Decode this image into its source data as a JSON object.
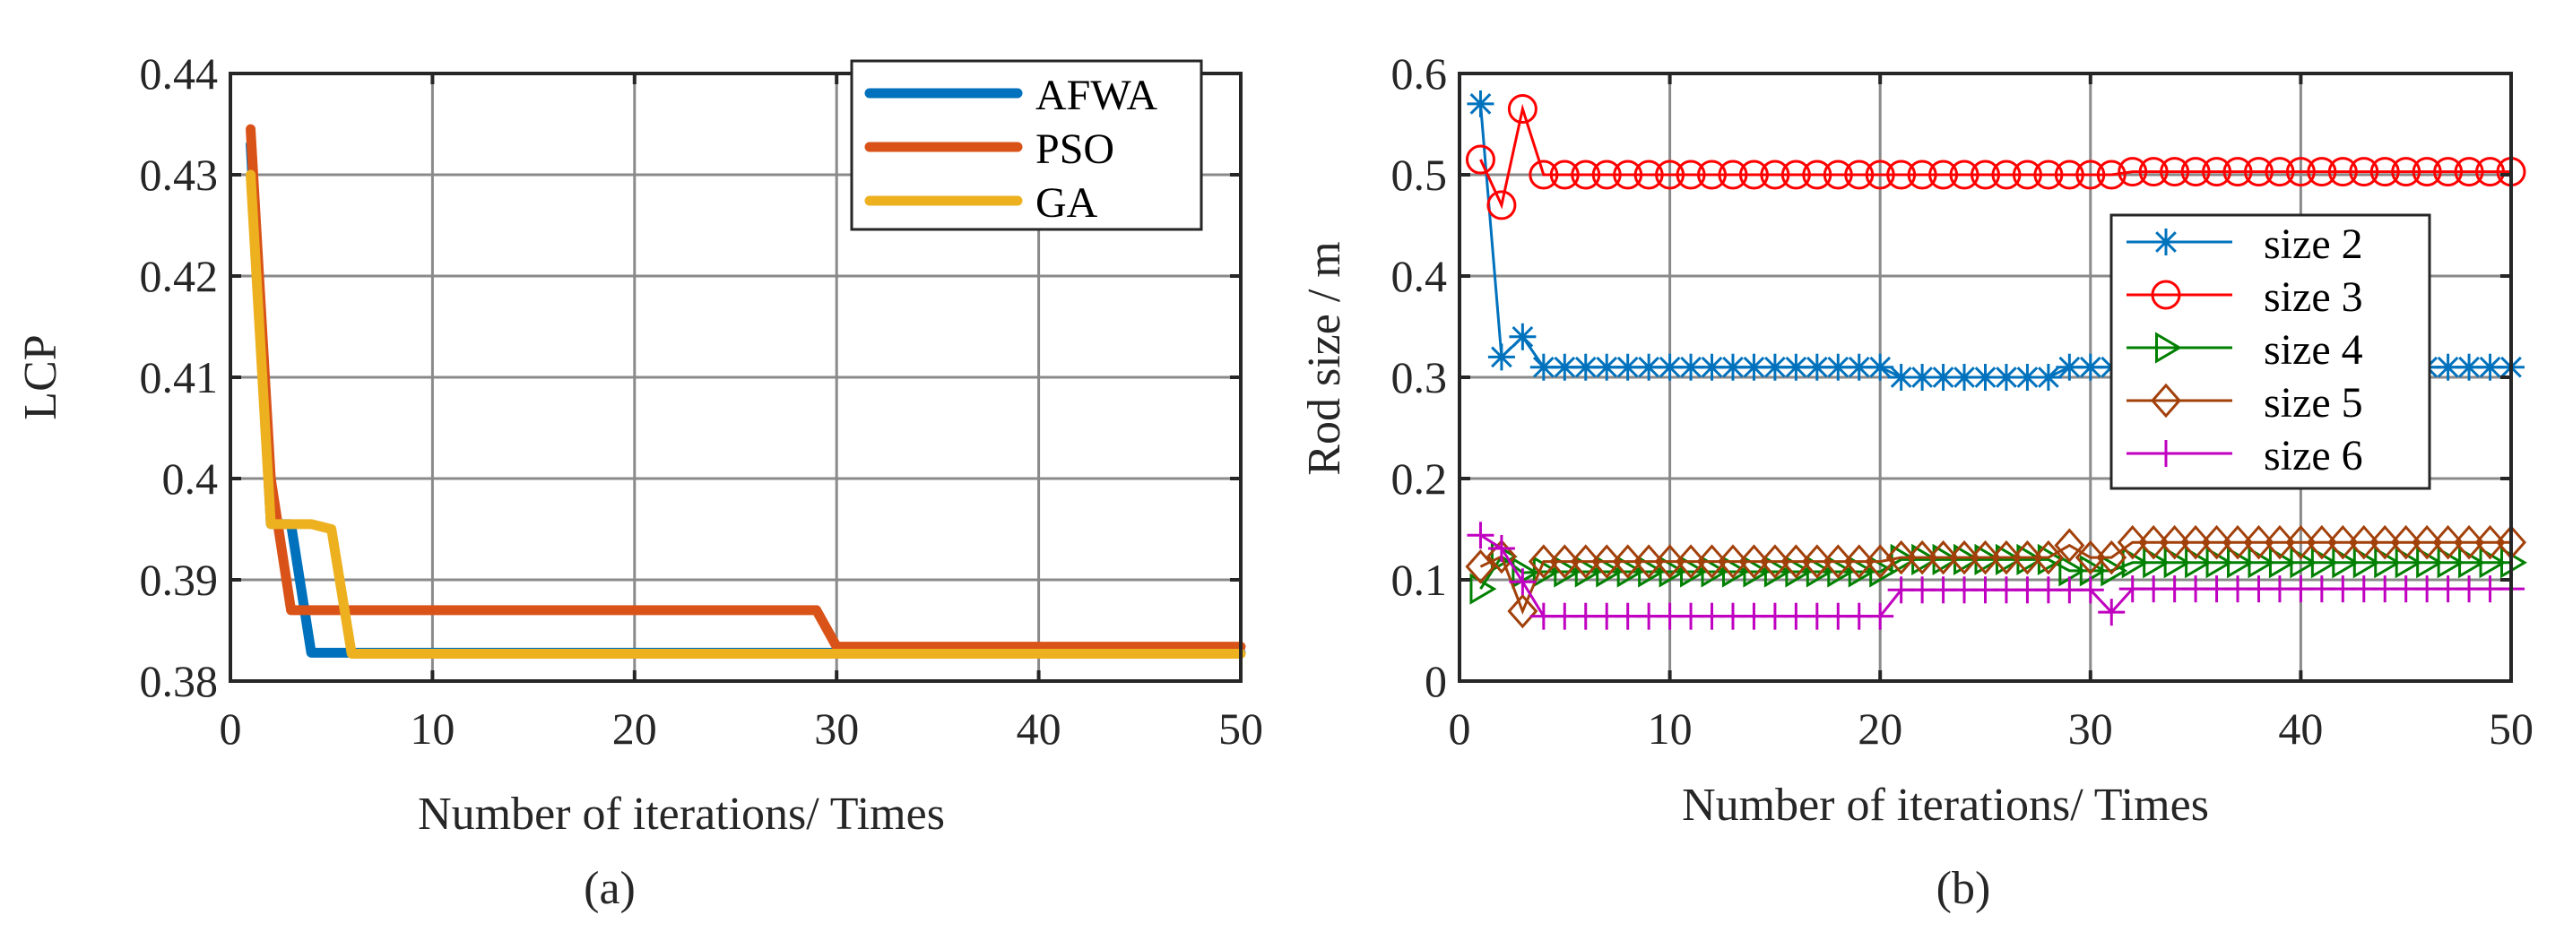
{
  "chart_data": [
    {
      "id": "a",
      "type": "line",
      "caption": "(a)",
      "title": "",
      "xlabel": "Number of iterations/ Times",
      "ylabel": "LCP",
      "xlim": [
        0,
        50
      ],
      "ylim": [
        0.38,
        0.44
      ],
      "xticks": [
        0,
        10,
        20,
        30,
        40,
        50
      ],
      "yticks": [
        0.38,
        0.39,
        0.4,
        0.41,
        0.42,
        0.43,
        0.44
      ],
      "xtick_labels": [
        "0",
        "10",
        "20",
        "30",
        "40",
        "50"
      ],
      "ytick_labels": [
        "0.38",
        "0.39",
        "0.4",
        "0.41",
        "0.42",
        "0.43",
        "0.44"
      ],
      "grid": true,
      "legend_position": "top-right",
      "series": [
        {
          "name": "AFWA",
          "color": "#0072BD",
          "x": [
            1,
            2,
            3,
            4,
            5,
            6,
            10,
            20,
            29,
            30,
            40,
            50
          ],
          "y": [
            0.433,
            0.3955,
            0.3955,
            0.3828,
            0.3828,
            0.3828,
            0.3828,
            0.3828,
            0.3828,
            0.3828,
            0.3828,
            0.3828
          ]
        },
        {
          "name": "PSO",
          "color": "#D95319",
          "x": [
            1,
            2,
            3,
            4,
            10,
            20,
            29,
            30,
            40,
            50
          ],
          "y": [
            0.4345,
            0.4,
            0.387,
            0.387,
            0.387,
            0.387,
            0.387,
            0.3834,
            0.3834,
            0.3834
          ]
        },
        {
          "name": "GA",
          "color": "#EDB120",
          "x": [
            1,
            2,
            3,
            4,
            5,
            6,
            10,
            20,
            30,
            40,
            50
          ],
          "y": [
            0.43,
            0.3955,
            0.3955,
            0.3955,
            0.395,
            0.3827,
            0.3827,
            0.3827,
            0.3827,
            0.3827,
            0.3827
          ]
        }
      ]
    },
    {
      "id": "b",
      "type": "line",
      "caption": "(b)",
      "title": "",
      "xlabel": "Number of iterations/ Times",
      "ylabel": "Rod size / m",
      "xlim": [
        0,
        50
      ],
      "ylim": [
        0,
        0.6
      ],
      "xticks": [
        0,
        10,
        20,
        30,
        40,
        50
      ],
      "yticks": [
        0,
        0.1,
        0.2,
        0.3,
        0.4,
        0.5,
        0.6
      ],
      "xtick_labels": [
        "0",
        "10",
        "20",
        "30",
        "40",
        "50"
      ],
      "ytick_labels": [
        "0",
        "0.1",
        "0.2",
        "0.3",
        "0.4",
        "0.5",
        "0.6"
      ],
      "grid": true,
      "legend_position": "center-right",
      "series": [
        {
          "name": "size 2",
          "marker": "asterisk",
          "color": "#0072BD",
          "y": [
            0.57,
            0.32,
            0.34,
            0.31,
            0.31,
            0.31,
            0.31,
            0.31,
            0.31,
            0.31,
            0.31,
            0.31,
            0.31,
            0.31,
            0.31,
            0.31,
            0.31,
            0.31,
            0.31,
            0.31,
            0.3,
            0.3,
            0.3,
            0.3,
            0.3,
            0.3,
            0.3,
            0.3,
            0.31,
            0.31,
            0.31,
            0.31,
            0.31,
            0.31,
            0.31,
            0.31,
            0.31,
            0.31,
            0.31,
            0.31,
            0.31,
            0.31,
            0.31,
            0.31,
            0.31,
            0.31,
            0.31,
            0.31,
            0.31,
            0.31
          ]
        },
        {
          "name": "size 3",
          "marker": "circle",
          "color": "#FF0000",
          "y": [
            0.515,
            0.47,
            0.565,
            0.5,
            0.5,
            0.5,
            0.5,
            0.5,
            0.5,
            0.5,
            0.5,
            0.5,
            0.5,
            0.5,
            0.5,
            0.5,
            0.5,
            0.5,
            0.5,
            0.5,
            0.5,
            0.5,
            0.5,
            0.5,
            0.5,
            0.5,
            0.5,
            0.5,
            0.5,
            0.5,
            0.5,
            0.503,
            0.503,
            0.503,
            0.503,
            0.503,
            0.503,
            0.503,
            0.503,
            0.503,
            0.503,
            0.503,
            0.503,
            0.503,
            0.503,
            0.503,
            0.503,
            0.503,
            0.503,
            0.503
          ]
        },
        {
          "name": "size 4",
          "marker": "triangle-right",
          "color": "#008000",
          "y": [
            0.091,
            0.123,
            0.107,
            0.108,
            0.108,
            0.108,
            0.108,
            0.108,
            0.108,
            0.108,
            0.108,
            0.108,
            0.108,
            0.108,
            0.108,
            0.108,
            0.108,
            0.108,
            0.108,
            0.108,
            0.12,
            0.12,
            0.12,
            0.12,
            0.12,
            0.12,
            0.12,
            0.12,
            0.109,
            0.109,
            0.109,
            0.117,
            0.117,
            0.117,
            0.117,
            0.117,
            0.117,
            0.117,
            0.117,
            0.117,
            0.117,
            0.117,
            0.117,
            0.117,
            0.117,
            0.117,
            0.117,
            0.117,
            0.117,
            0.117
          ]
        },
        {
          "name": "size 5",
          "marker": "diamond",
          "color": "#A2400A",
          "y": [
            0.113,
            0.123,
            0.069,
            0.118,
            0.118,
            0.118,
            0.118,
            0.118,
            0.118,
            0.118,
            0.118,
            0.118,
            0.118,
            0.118,
            0.118,
            0.118,
            0.118,
            0.118,
            0.118,
            0.118,
            0.122,
            0.122,
            0.122,
            0.122,
            0.122,
            0.122,
            0.122,
            0.122,
            0.134,
            0.122,
            0.122,
            0.137,
            0.137,
            0.137,
            0.137,
            0.137,
            0.137,
            0.137,
            0.137,
            0.137,
            0.137,
            0.137,
            0.137,
            0.137,
            0.137,
            0.137,
            0.137,
            0.137,
            0.137,
            0.137
          ]
        },
        {
          "name": "size 6",
          "marker": "plus",
          "color": "#C000C0",
          "y": [
            0.144,
            0.131,
            0.098,
            0.064,
            0.064,
            0.064,
            0.064,
            0.064,
            0.064,
            0.064,
            0.064,
            0.064,
            0.064,
            0.064,
            0.064,
            0.064,
            0.064,
            0.064,
            0.064,
            0.064,
            0.09,
            0.09,
            0.09,
            0.09,
            0.09,
            0.09,
            0.09,
            0.09,
            0.09,
            0.09,
            0.068,
            0.091,
            0.091,
            0.091,
            0.091,
            0.091,
            0.091,
            0.091,
            0.091,
            0.091,
            0.091,
            0.091,
            0.091,
            0.091,
            0.091,
            0.091,
            0.091,
            0.091,
            0.091,
            0.091
          ]
        }
      ]
    }
  ]
}
